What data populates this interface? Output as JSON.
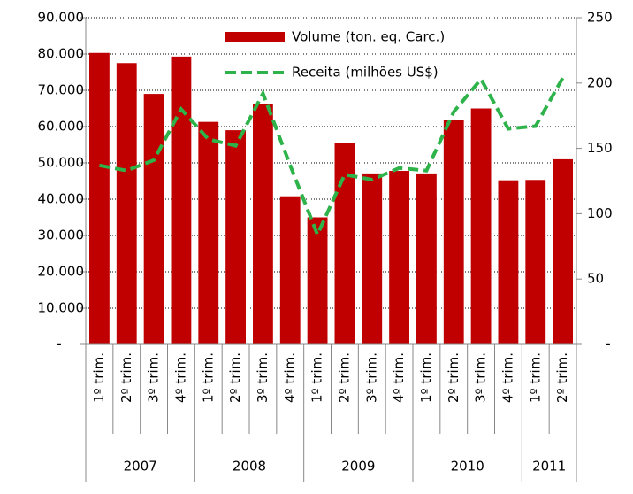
{
  "chart_data": {
    "type": "bar_line",
    "groups": [
      {
        "label": "2007",
        "categories": [
          "1º trim.",
          "2º trim.",
          "3º trim.",
          "4º trim."
        ]
      },
      {
        "label": "2008",
        "categories": [
          "1º trim.",
          "2º trim.",
          "3º trim.",
          "4º trim."
        ]
      },
      {
        "label": "2009",
        "categories": [
          "1º trim.",
          "2º trim.",
          "3º trim.",
          "4º trim."
        ]
      },
      {
        "label": "2010",
        "categories": [
          "1º trim.",
          "2º trim.",
          "3º trim.",
          "4º trim."
        ]
      },
      {
        "label": "2011",
        "categories": [
          "1º trim.",
          "2º trim."
        ]
      }
    ],
    "series": [
      {
        "name": "Volume (ton. eq. Carc.)",
        "type": "bar",
        "color": "#c00000",
        "values": [
          80300,
          77500,
          69000,
          79300,
          61300,
          59000,
          66200,
          40800,
          35000,
          55600,
          47100,
          47800,
          47100,
          61900,
          65000,
          45200,
          45300,
          51000
        ]
      },
      {
        "name": "Receita (milhões US$)",
        "type": "line",
        "axis": "y2",
        "color": "#2db34a",
        "values": [
          137,
          133,
          141,
          180,
          157,
          152,
          192,
          137,
          84,
          130,
          126,
          135,
          133,
          178,
          203,
          165,
          167,
          204
        ]
      }
    ],
    "ylim": [
      0,
      90000
    ],
    "yticks": [
      {
        "value": 0,
        "label": "-"
      },
      {
        "value": 10000,
        "label": "10.000"
      },
      {
        "value": 20000,
        "label": "20.000"
      },
      {
        "value": 30000,
        "label": "30.000"
      },
      {
        "value": 40000,
        "label": "40.000"
      },
      {
        "value": 50000,
        "label": "50.000"
      },
      {
        "value": 60000,
        "label": "60.000"
      },
      {
        "value": 70000,
        "label": "70.000"
      },
      {
        "value": 80000,
        "label": "80.000"
      },
      {
        "value": 90000,
        "label": "90.000"
      }
    ],
    "y2lim": [
      0,
      250
    ],
    "y2ticks": [
      {
        "value": 0,
        "label": "-"
      },
      50,
      100,
      150,
      200,
      250
    ],
    "grid": true
  }
}
